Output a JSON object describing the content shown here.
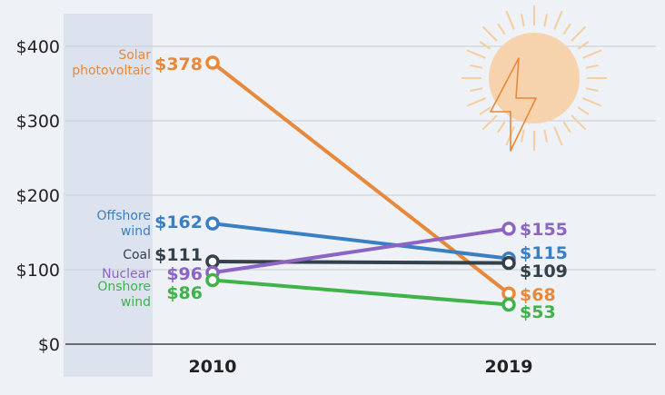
{
  "chart_data": {
    "type": "line",
    "title": "",
    "xlabel": "",
    "ylabel": "",
    "categories": [
      "2010",
      "2019"
    ],
    "ylim": [
      0,
      400
    ],
    "yticks": [
      0,
      100,
      200,
      300,
      400
    ],
    "ytick_labels": [
      "$0",
      "$100",
      "$200",
      "$300",
      "$400"
    ],
    "grid": true,
    "series": [
      {
        "id": "solar",
        "name_lines": [
          "Solar",
          "photovoltaic"
        ],
        "values": [
          378,
          68
        ],
        "labels": [
          "$378",
          "$68"
        ],
        "color": "#e8883a"
      },
      {
        "id": "offshore",
        "name_lines": [
          "Offshore",
          "wind"
        ],
        "values": [
          162,
          115
        ],
        "labels": [
          "$162",
          "$115"
        ],
        "color": "#3a7fc4"
      },
      {
        "id": "coal",
        "name_lines": [
          "Coal"
        ],
        "values": [
          111,
          109
        ],
        "labels": [
          "$111",
          "$109"
        ],
        "color": "#34404a"
      },
      {
        "id": "nuclear",
        "name_lines": [
          "Nuclear"
        ],
        "values": [
          96,
          155
        ],
        "labels": [
          "$96",
          "$155"
        ],
        "color": "#8c64c4"
      },
      {
        "id": "onshore",
        "name_lines": [
          "Onshore",
          "wind"
        ],
        "values": [
          86,
          53
        ],
        "labels": [
          "$86",
          "$53"
        ],
        "color": "#3fb34a"
      }
    ]
  },
  "colors": {
    "background": "#eef1f5",
    "highlight_band": "#dde3ee",
    "grid": "#c7cdd5",
    "sun": "#f7d3ad",
    "sun_rays": "#f5cd9e",
    "bolt": "#e8883a"
  },
  "decorations": {
    "sun_icon": "sun-icon",
    "bolt_icon": "lightning-bolt-icon"
  }
}
